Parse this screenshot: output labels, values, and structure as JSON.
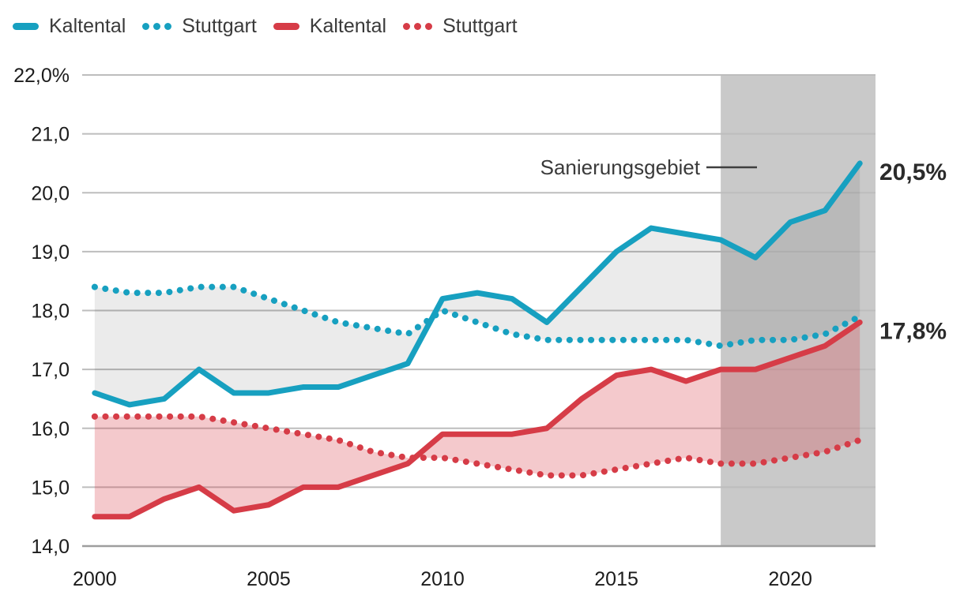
{
  "legend": [
    {
      "label": "Kaltental",
      "style": "solid",
      "color": "#17a0c0"
    },
    {
      "label": "Stuttgart",
      "style": "dotted",
      "color": "#17a0c0"
    },
    {
      "label": "Kaltental",
      "style": "solid",
      "color": "#d63c47"
    },
    {
      "label": "Stuttgart",
      "style": "dotted",
      "color": "#d63c47"
    }
  ],
  "chart_data": {
    "type": "line",
    "x": [
      2000,
      2001,
      2002,
      2003,
      2004,
      2005,
      2006,
      2007,
      2008,
      2009,
      2010,
      2011,
      2012,
      2013,
      2014,
      2015,
      2016,
      2017,
      2018,
      2019,
      2020,
      2021,
      2022
    ],
    "series": [
      {
        "name": "Kaltental",
        "color": "#17a0c0",
        "style": "solid",
        "values": [
          16.6,
          16.4,
          16.5,
          17.0,
          16.6,
          16.6,
          16.7,
          16.7,
          16.9,
          17.1,
          18.2,
          18.3,
          18.2,
          17.8,
          18.4,
          19.0,
          19.4,
          19.3,
          19.2,
          18.9,
          19.5,
          19.7,
          20.5
        ]
      },
      {
        "name": "Stuttgart",
        "color": "#17a0c0",
        "style": "dotted",
        "values": [
          18.4,
          18.3,
          18.3,
          18.4,
          18.4,
          18.2,
          18.0,
          17.8,
          17.7,
          17.6,
          18.0,
          17.8,
          17.6,
          17.5,
          17.5,
          17.5,
          17.5,
          17.5,
          17.4,
          17.5,
          17.5,
          17.6,
          17.9
        ]
      },
      {
        "name": "Kaltental",
        "color": "#d63c47",
        "style": "solid",
        "values": [
          14.5,
          14.5,
          14.8,
          15.0,
          14.6,
          14.7,
          15.0,
          15.0,
          15.2,
          15.4,
          15.9,
          15.9,
          15.9,
          16.0,
          16.5,
          16.9,
          17.0,
          16.8,
          17.0,
          17.0,
          17.2,
          17.4,
          17.8
        ]
      },
      {
        "name": "Stuttgart",
        "color": "#d63c47",
        "style": "dotted",
        "values": [
          16.2,
          16.2,
          16.2,
          16.2,
          16.1,
          16.0,
          15.9,
          15.8,
          15.6,
          15.5,
          15.5,
          15.4,
          15.3,
          15.2,
          15.2,
          15.3,
          15.4,
          15.5,
          15.4,
          15.4,
          15.5,
          15.6,
          15.8
        ]
      }
    ],
    "bands": [
      {
        "between": [
          0,
          1
        ],
        "fill": "rgba(0,0,0,0.08)"
      },
      {
        "between": [
          2,
          3
        ],
        "fill": "rgba(214,60,71,0.28)"
      }
    ],
    "highlight_region": {
      "label": "Sanierungsgebiet",
      "x_start": 2018,
      "x_end": 2022.45,
      "fill": "#c9c9c9"
    },
    "y_ticks": [
      {
        "value": 22,
        "label": "22,0%"
      },
      {
        "value": 21,
        "label": "21,0"
      },
      {
        "value": 20,
        "label": "20,0"
      },
      {
        "value": 19,
        "label": "19,0"
      },
      {
        "value": 18,
        "label": "18,0"
      },
      {
        "value": 17,
        "label": "17,0"
      },
      {
        "value": 16,
        "label": "16,0"
      },
      {
        "value": 15,
        "label": "15,0"
      },
      {
        "value": 14,
        "label": "14,0"
      }
    ],
    "x_ticks": [
      {
        "value": 2000,
        "label": "2000"
      },
      {
        "value": 2005,
        "label": "2005"
      },
      {
        "value": 2010,
        "label": "2010"
      },
      {
        "value": 2015,
        "label": "2015"
      },
      {
        "value": 2020,
        "label": "2020"
      }
    ],
    "ylim": [
      14,
      22
    ],
    "xlim": [
      1999.64,
      2022.45
    ],
    "grid": "horizontal",
    "legend_position": "top-left",
    "end_labels": [
      {
        "text": "20,5%",
        "value": 20.5
      },
      {
        "text": "17,8%",
        "value": 17.8
      }
    ]
  }
}
